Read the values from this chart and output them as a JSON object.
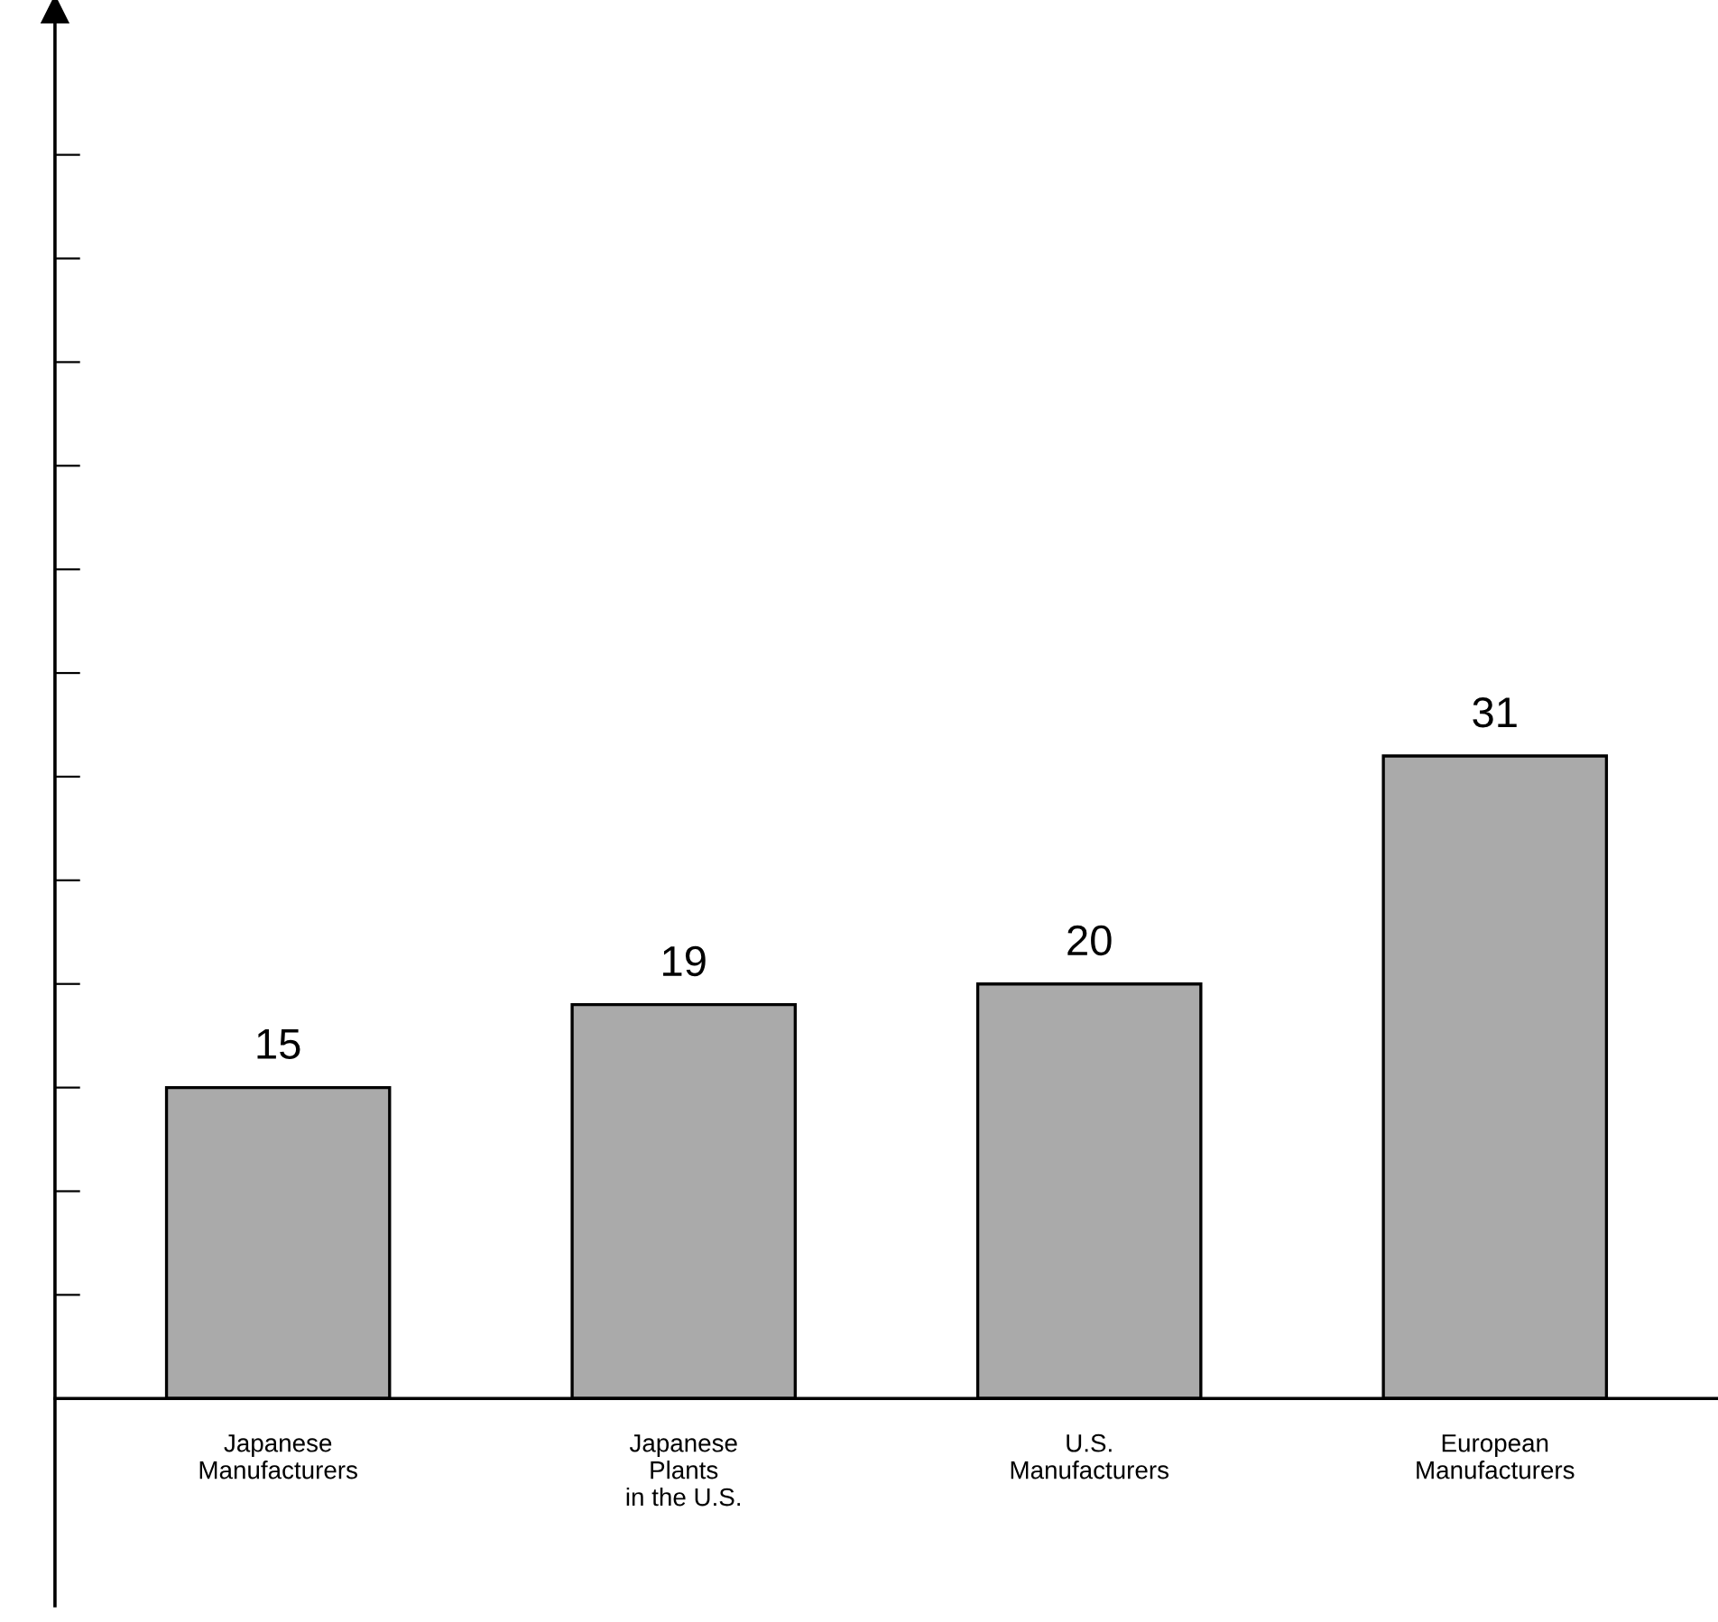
{
  "chart_data": {
    "type": "bar",
    "categories": [
      "Japanese\nManufacturers",
      "Japanese\nPlants\nin the U.S.",
      "U.S.\nManufacturers",
      "European\nManufacturers"
    ],
    "values": [
      15,
      19,
      20,
      31
    ],
    "color": "#aaaaaa",
    "data_labels": true,
    "ylim": [
      -10,
      67
    ],
    "yticks": [
      {
        "value": 5,
        "label": null
      },
      {
        "value": 10,
        "label": null
      },
      {
        "value": 15,
        "label": null
      },
      {
        "value": 20,
        "label": null
      },
      {
        "value": 25,
        "label": null
      },
      {
        "value": 30,
        "label": null
      },
      {
        "value": 35,
        "label": null
      },
      {
        "value": 40,
        "label": null
      },
      {
        "value": 45,
        "label": null
      },
      {
        "value": 50,
        "label": null
      },
      {
        "value": 55,
        "label": null
      },
      {
        "value": 60,
        "label": null
      }
    ],
    "tick_labels": "x",
    "grid": false,
    "legend": false
  }
}
